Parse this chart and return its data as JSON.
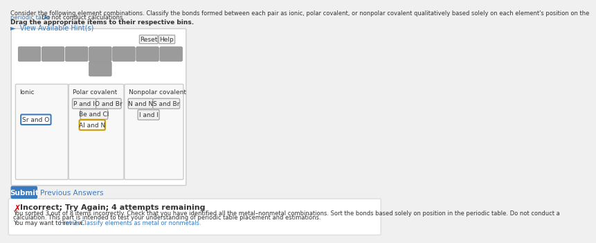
{
  "bg_color": "#f0f0f0",
  "white": "#ffffff",
  "text_color": "#333333",
  "link_color": "#3a7bbf",
  "line1": "Consider the following element combinations. Classify the bonds formed between each pair as ionic, polar covalent, or nonpolar covalent qualitatively based solely on each element's position on the",
  "line2_link": "periodic table",
  "line2_rest": ". Do not conduct calculations.",
  "bold_text": "Drag the appropriate items to their respective bins.",
  "hint_text": "►  View Available Hint(s)",
  "reset_btn": "Reset",
  "help_btn": "Help",
  "bins": [
    "Ionic",
    "Polar covalent",
    "Nonpolar covalent"
  ],
  "ionic_items": [
    {
      "text": "Sr and O",
      "border": "#3a7bbf",
      "bg": "#ffffff"
    }
  ],
  "polar_items": [
    {
      "text": "P and I",
      "border": "#aaaaaa",
      "bg": "#f0f0f0"
    },
    {
      "text": "O and Br",
      "border": "#aaaaaa",
      "bg": "#f0f0f0"
    },
    {
      "text": "Be and Cl",
      "border": "#aaaaaa",
      "bg": "#f0f0f0"
    },
    {
      "text": "Al and N",
      "border": "#cc9900",
      "bg": "#ffffff"
    }
  ],
  "nonpolar_items": [
    {
      "text": "N and N",
      "border": "#aaaaaa",
      "bg": "#f0f0f0"
    },
    {
      "text": "S and Br",
      "border": "#aaaaaa",
      "bg": "#f0f0f0"
    },
    {
      "text": "I and I",
      "border": "#aaaaaa",
      "bg": "#f0f0f0"
    }
  ],
  "submit_btn_text": "Submit",
  "submit_btn_color": "#3a7bbf",
  "prev_ans_text": "Previous Answers",
  "error_title": "Incorrect; Try Again; 4 attempts remaining",
  "error_text1": "You sorted 3 out of 8 items incorrectly. Check that you have identified all the metal–nonmetal combinations. Sort the bonds based solely on position in the periodic table. Do not conduct a",
  "error_text2": "calculation. This part is intended to test your understanding of periodic table placement and estimations.",
  "error_text3": "You may want to review ",
  "error_link": "Hint 2: Classify elements as metal or nonmetals.",
  "gray_box_color": "#9b9b9b",
  "gray_box_ec": "#888888",
  "main_box_ec": "#cccccc",
  "bin_ec": "#cccccc",
  "item_ec": "#aaaaaa",
  "item_fc": "#f0f0f0"
}
